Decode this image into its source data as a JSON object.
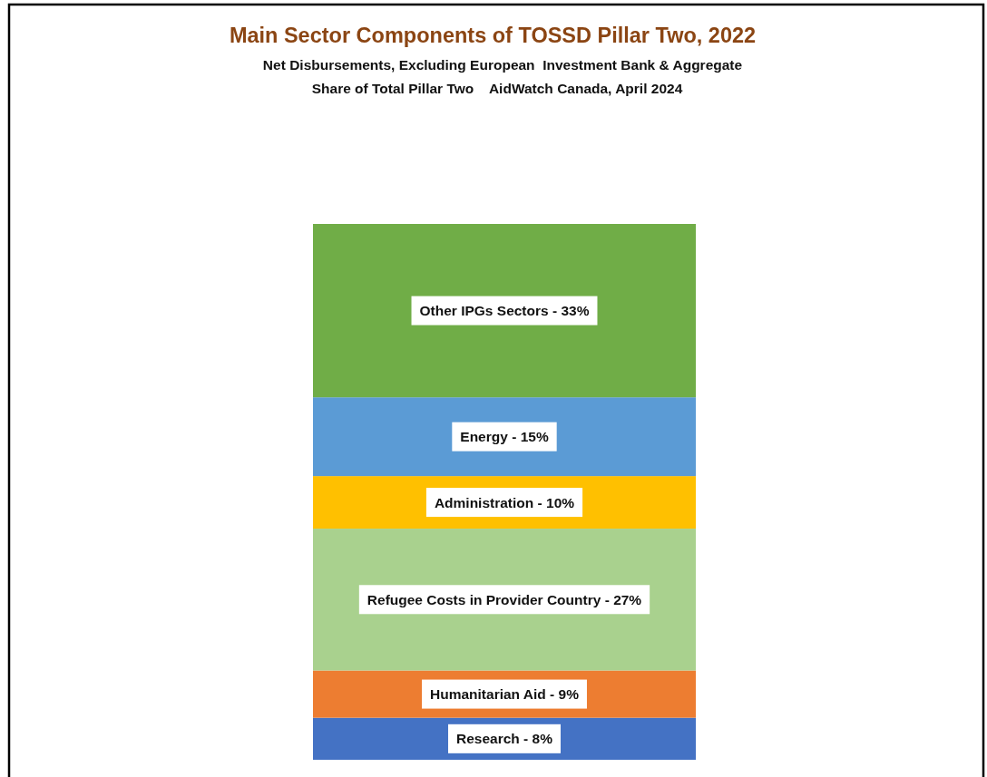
{
  "chart_data": {
    "type": "bar",
    "stacked": true,
    "title": "Main Sector Components of TOSSD Pillar Two, 2022",
    "subtitle": "Net Disbursements, Excluding European  Investment Bank & Aggregate\nShare of Total Pillar Two    AidWatch Canada, April 2024",
    "categories": [
      null
    ],
    "series": [
      {
        "name": "Research -",
        "color": "#4472c4",
        "values": [
          8
        ],
        "value_labels": [
          "8%"
        ]
      },
      {
        "name": "Humanitarian Aid -",
        "color": "#ed7d31",
        "values": [
          9
        ],
        "value_labels": [
          "9%"
        ]
      },
      {
        "name": "Refugee Costs in Provider Country -",
        "color": "#a9d18e",
        "values": [
          27
        ],
        "value_labels": [
          "27%"
        ]
      },
      {
        "name": "Administration -",
        "color": "#ffc000",
        "values": [
          10
        ],
        "value_labels": [
          "10%"
        ]
      },
      {
        "name": "Energy -",
        "color": "#5b9bd5",
        "values": [
          15
        ],
        "value_labels": [
          "15%"
        ]
      },
      {
        "name": "Other IPGs Sectors -",
        "color": "#70ad47",
        "values": [
          33
        ],
        "value_labels": [
          "33%"
        ]
      }
    ]
  }
}
